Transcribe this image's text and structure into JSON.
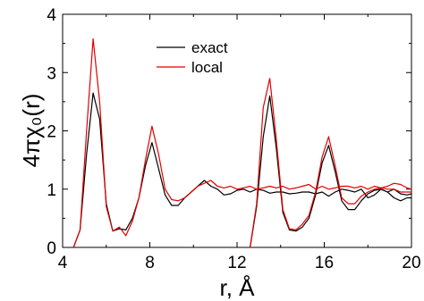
{
  "chart_data": {
    "type": "line",
    "title": "",
    "xlabel": "r, Å",
    "ylabel": "4πχ₀(r)",
    "xlim": [
      4,
      20
    ],
    "ylim": [
      0,
      4
    ],
    "x_ticks": [
      4,
      8,
      12,
      16,
      20
    ],
    "y_ticks": [
      0,
      1,
      2,
      3,
      4
    ],
    "x_tick_labels": [
      "4",
      "8",
      "12",
      "16",
      "20"
    ],
    "y_tick_labels": [
      "0",
      "1",
      "2",
      "3",
      "4"
    ],
    "grid": false,
    "legend_position": "top-center",
    "series": [
      {
        "name": "exact",
        "color": "#000000",
        "points": [
          [
            4.5,
            0.0
          ],
          [
            4.8,
            0.3
          ],
          [
            5.1,
            1.6
          ],
          [
            5.4,
            2.65
          ],
          [
            5.7,
            2.2
          ],
          [
            6.0,
            0.75
          ],
          [
            6.3,
            0.28
          ],
          [
            6.6,
            0.32
          ],
          [
            6.9,
            0.3
          ],
          [
            7.2,
            0.5
          ],
          [
            7.5,
            0.85
          ],
          [
            7.8,
            1.4
          ],
          [
            8.1,
            1.8
          ],
          [
            8.4,
            1.35
          ],
          [
            8.7,
            0.9
          ],
          [
            9.0,
            0.72
          ],
          [
            9.3,
            0.72
          ],
          [
            9.6,
            0.85
          ],
          [
            9.9,
            0.95
          ],
          [
            10.2,
            1.05
          ],
          [
            10.5,
            1.15
          ],
          [
            10.8,
            1.05
          ],
          [
            11.1,
            1.0
          ],
          [
            11.4,
            0.9
          ],
          [
            11.7,
            0.92
          ],
          [
            12.0,
            0.98
          ],
          [
            12.3,
            1.0
          ],
          [
            12.6,
            0.95
          ],
          [
            12.9,
            1.0
          ],
          [
            13.2,
            0.98
          ],
          [
            13.5,
            0.93
          ],
          [
            13.8,
            0.95
          ],
          [
            14.1,
            0.95
          ],
          [
            14.4,
            0.92
          ],
          [
            14.7,
            0.93
          ],
          [
            15.0,
            0.95
          ],
          [
            15.3,
            0.95
          ],
          [
            15.6,
            0.92
          ],
          [
            15.9,
            0.95
          ],
          [
            16.2,
            0.88
          ],
          [
            16.5,
            0.95
          ],
          [
            16.8,
            1.0
          ],
          [
            17.1,
            0.98
          ],
          [
            17.4,
            0.95
          ],
          [
            17.7,
            1.0
          ],
          [
            18.0,
            0.85
          ],
          [
            18.3,
            0.9
          ],
          [
            18.6,
            1.0
          ],
          [
            18.9,
            0.95
          ],
          [
            19.2,
            0.85
          ],
          [
            19.5,
            0.8
          ],
          [
            19.8,
            0.85
          ],
          [
            20.0,
            0.85
          ]
        ],
        "points2": [
          [
            12.6,
            0.0
          ],
          [
            12.9,
            0.7
          ],
          [
            13.2,
            1.9
          ],
          [
            13.5,
            2.6
          ],
          [
            13.8,
            1.7
          ],
          [
            14.1,
            0.6
          ],
          [
            14.4,
            0.3
          ],
          [
            14.7,
            0.28
          ],
          [
            15.0,
            0.35
          ],
          [
            15.3,
            0.5
          ],
          [
            15.6,
            0.9
          ],
          [
            15.9,
            1.45
          ],
          [
            16.2,
            1.75
          ],
          [
            16.5,
            1.3
          ],
          [
            16.8,
            0.8
          ],
          [
            17.1,
            0.65
          ],
          [
            17.4,
            0.65
          ],
          [
            17.7,
            0.8
          ],
          [
            18.0,
            0.92
          ],
          [
            18.3,
            0.98
          ],
          [
            18.6,
            1.0
          ],
          [
            18.9,
            0.95
          ],
          [
            19.2,
            1.0
          ],
          [
            19.5,
            0.92
          ],
          [
            19.8,
            0.9
          ],
          [
            20.0,
            0.92
          ]
        ]
      },
      {
        "name": "local",
        "color": "#e00000",
        "points": [
          [
            4.5,
            0.0
          ],
          [
            4.8,
            0.3
          ],
          [
            5.1,
            2.0
          ],
          [
            5.4,
            3.58
          ],
          [
            5.7,
            2.5
          ],
          [
            6.0,
            0.7
          ],
          [
            6.3,
            0.28
          ],
          [
            6.6,
            0.35
          ],
          [
            6.9,
            0.2
          ],
          [
            7.2,
            0.45
          ],
          [
            7.5,
            0.85
          ],
          [
            7.8,
            1.5
          ],
          [
            8.1,
            2.08
          ],
          [
            8.4,
            1.6
          ],
          [
            8.7,
            1.0
          ],
          [
            9.0,
            0.82
          ],
          [
            9.3,
            0.8
          ],
          [
            9.6,
            0.85
          ],
          [
            9.9,
            0.95
          ],
          [
            10.2,
            1.05
          ],
          [
            10.5,
            1.1
          ],
          [
            10.8,
            1.15
          ],
          [
            11.1,
            1.05
          ],
          [
            11.4,
            1.02
          ],
          [
            11.7,
            1.05
          ],
          [
            12.0,
            1.0
          ],
          [
            12.3,
            1.02
          ],
          [
            12.6,
            1.05
          ],
          [
            12.9,
            1.0
          ],
          [
            13.2,
            1.02
          ],
          [
            13.5,
            1.05
          ],
          [
            13.8,
            1.02
          ],
          [
            14.1,
            1.05
          ],
          [
            14.4,
            1.0
          ],
          [
            14.7,
            1.02
          ],
          [
            15.0,
            1.05
          ],
          [
            15.3,
            1.08
          ],
          [
            15.6,
            1.0
          ],
          [
            15.9,
            1.05
          ],
          [
            16.2,
            1.0
          ],
          [
            16.5,
            1.02
          ],
          [
            16.8,
            1.05
          ],
          [
            17.1,
            1.05
          ],
          [
            17.4,
            1.02
          ],
          [
            17.7,
            1.05
          ],
          [
            18.0,
            1.0
          ],
          [
            18.3,
            1.05
          ],
          [
            18.6,
            1.02
          ],
          [
            18.9,
            1.05
          ],
          [
            19.2,
            1.1
          ],
          [
            19.5,
            1.08
          ],
          [
            19.8,
            1.02
          ],
          [
            20.0,
            1.0
          ]
        ],
        "points2": [
          [
            12.6,
            0.0
          ],
          [
            12.9,
            0.75
          ],
          [
            13.2,
            2.4
          ],
          [
            13.5,
            2.9
          ],
          [
            13.8,
            1.85
          ],
          [
            14.1,
            0.65
          ],
          [
            14.4,
            0.32
          ],
          [
            14.7,
            0.3
          ],
          [
            15.0,
            0.4
          ],
          [
            15.3,
            0.55
          ],
          [
            15.6,
            0.95
          ],
          [
            15.9,
            1.55
          ],
          [
            16.2,
            1.9
          ],
          [
            16.5,
            1.4
          ],
          [
            16.8,
            0.85
          ],
          [
            17.1,
            0.75
          ],
          [
            17.4,
            0.75
          ],
          [
            17.7,
            0.88
          ],
          [
            18.0,
            0.95
          ],
          [
            18.3,
            1.0
          ],
          [
            18.6,
            1.02
          ],
          [
            18.9,
            1.0
          ],
          [
            19.2,
            1.0
          ],
          [
            19.5,
            0.95
          ],
          [
            19.8,
            0.95
          ],
          [
            20.0,
            0.95
          ]
        ]
      }
    ]
  }
}
